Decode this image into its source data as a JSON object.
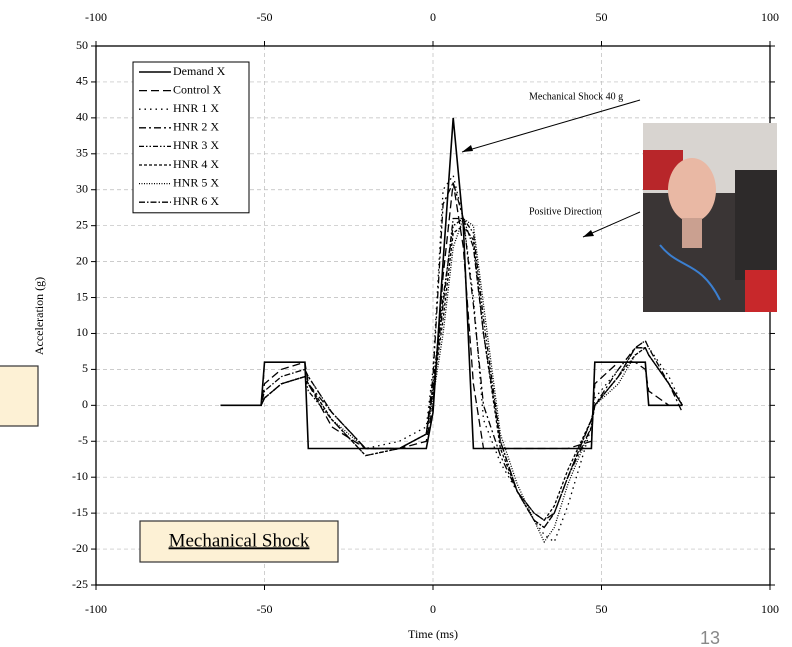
{
  "chart_data": {
    "type": "line",
    "title": "Mechanical Shock",
    "x_label": "Time (ms)",
    "y_label": "Acceleration (g)",
    "annotations": [
      "Mechanical Shock 40 g",
      "Positive Direction"
    ],
    "page_number": "13",
    "xlim": [
      -100,
      100
    ],
    "xticks": [
      -100,
      -50,
      0,
      50,
      100
    ],
    "ylim": [
      -25,
      50
    ],
    "yticks": [
      -25,
      -20,
      -15,
      -10,
      -5,
      0,
      5,
      10,
      15,
      20,
      25,
      30,
      35,
      40,
      45,
      50
    ],
    "grid": true,
    "legend": "upper left",
    "x": [
      -63,
      -55,
      -51,
      -50,
      -45,
      -38,
      -37,
      -30,
      -20,
      -10,
      -2,
      0,
      3,
      6,
      9,
      12,
      15,
      20,
      25,
      30,
      33,
      36,
      40,
      47,
      48,
      55,
      60,
      63,
      64,
      70,
      74
    ],
    "series": [
      {
        "name": "Demand X",
        "color": "#000000",
        "dash": "none",
        "width": 1.6,
        "values": [
          0,
          0,
          0,
          6,
          6,
          6,
          -6,
          -6,
          -6,
          -6,
          -6,
          -1,
          20,
          40,
          25,
          -6,
          -6,
          -6,
          -6,
          -6,
          -6,
          -6,
          -6,
          -6,
          6,
          6,
          6,
          6,
          0,
          0,
          0
        ]
      },
      {
        "name": "Control X",
        "color": "#000000",
        "dash": "8,4",
        "width": 1.3,
        "values": [
          0,
          0,
          0,
          3,
          5,
          6,
          3,
          -3,
          -6,
          -6,
          -5,
          0,
          18,
          31,
          22,
          3,
          -6,
          -6,
          -6,
          -6,
          -6,
          -6,
          -6,
          -5,
          3,
          6,
          6,
          5,
          2,
          0,
          0
        ]
      },
      {
        "name": "HNR 1 X",
        "color": "#000000",
        "dash": "1.5,4",
        "width": 1.3,
        "values": [
          0,
          0,
          0,
          1,
          3,
          4,
          4,
          -1,
          -6,
          -5,
          -3,
          5,
          30,
          32,
          26,
          15,
          -2,
          -8,
          -12,
          -16,
          -18,
          -19,
          -14,
          -3,
          1,
          5,
          8,
          9,
          8,
          4,
          0
        ]
      },
      {
        "name": "HNR 2 X",
        "color": "#000000",
        "dash": "7,3,2,3",
        "width": 1.3,
        "values": [
          0,
          0,
          0,
          1,
          3,
          4,
          3,
          -1,
          -6,
          -6,
          -4,
          4,
          28,
          31,
          26,
          14,
          0,
          -7,
          -12,
          -15,
          -16,
          -15,
          -10,
          -3,
          0,
          5,
          8,
          8,
          7,
          3,
          -1
        ]
      },
      {
        "name": "HNR 3 X",
        "color": "#000000",
        "dash": "5,2,1.5,2,1.5,2",
        "width": 1.3,
        "values": [
          0,
          0,
          0,
          1,
          3,
          4,
          2,
          -2,
          -7,
          -6,
          -4,
          3,
          15,
          25,
          26,
          24,
          12,
          -5,
          -12,
          -16,
          -17,
          -15,
          -10,
          -2,
          0,
          4,
          8,
          8,
          7,
          3,
          0
        ]
      },
      {
        "name": "HNR 4 X",
        "color": "#000000",
        "dash": "3,2",
        "width": 1.3,
        "values": [
          0,
          0,
          0,
          1,
          3,
          4,
          3,
          -2,
          -7,
          -6,
          -4,
          2,
          12,
          24,
          25,
          23,
          10,
          -6,
          -12,
          -15,
          -16,
          -14,
          -9,
          -2,
          0,
          4,
          7,
          8,
          7,
          3,
          0
        ]
      },
      {
        "name": "HNR 5 X",
        "color": "#000000",
        "dash": "1,1.5",
        "width": 1.3,
        "values": [
          0,
          0,
          0,
          1,
          3,
          4,
          3,
          -2,
          -6,
          -6,
          -4,
          1,
          10,
          22,
          26,
          25,
          14,
          -4,
          -11,
          -16,
          -19,
          -17,
          -11,
          -3,
          0,
          3,
          7,
          8,
          7,
          3,
          0
        ]
      },
      {
        "name": "HNR 6 X",
        "color": "#000000",
        "dash": "6,2,1.5,2",
        "width": 1.3,
        "values": [
          0,
          0,
          0,
          2,
          4,
          5,
          4,
          -1,
          -6,
          -6,
          -4,
          2,
          14,
          26,
          26,
          22,
          10,
          -5,
          -12,
          -16,
          -17,
          -15,
          -10,
          -2,
          0,
          4,
          8,
          9,
          8,
          3,
          0
        ]
      }
    ]
  }
}
